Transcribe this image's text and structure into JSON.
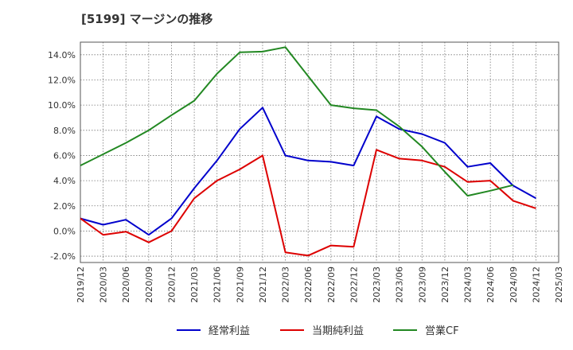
{
  "chart_data": {
    "type": "line",
    "title": "[5199]  マージンの推移",
    "xlabel": "",
    "ylabel": "",
    "ylim": [
      -2.5,
      15.0
    ],
    "y_ticks": [
      "-2.0%",
      "0.0%",
      "2.0%",
      "4.0%",
      "6.0%",
      "8.0%",
      "10.0%",
      "12.0%",
      "14.0%"
    ],
    "y_tick_values": [
      -2,
      0,
      2,
      4,
      6,
      8,
      10,
      12,
      14
    ],
    "categories": [
      "2019/12",
      "2020/03",
      "2020/06",
      "2020/09",
      "2020/12",
      "2021/03",
      "2021/06",
      "2021/09",
      "2021/12",
      "2022/03",
      "2022/06",
      "2022/09",
      "2022/12",
      "2023/03",
      "2023/06",
      "2023/09",
      "2023/12",
      "2024/03",
      "2024/06",
      "2024/09",
      "2024/12",
      "2025/03"
    ],
    "grid": true,
    "legend_position": "bottom",
    "series": [
      {
        "name": "経常利益",
        "color": "#0000cc",
        "values": [
          1.0,
          0.5,
          0.9,
          -0.3,
          1.0,
          3.4,
          5.6,
          8.1,
          9.8,
          6.0,
          5.6,
          5.5,
          5.2,
          9.1,
          8.1,
          7.7,
          7.0,
          5.1,
          5.4,
          3.6,
          2.6,
          null
        ]
      },
      {
        "name": "当期純利益",
        "color": "#dd0000",
        "values": [
          1.0,
          -0.3,
          -0.05,
          -0.9,
          0.0,
          2.6,
          4.0,
          4.9,
          6.0,
          -1.7,
          -1.95,
          -1.15,
          -1.25,
          6.45,
          5.75,
          5.6,
          5.1,
          3.9,
          4.0,
          2.4,
          1.8,
          null
        ]
      },
      {
        "name": "営業CF",
        "color": "#228822",
        "values": [
          5.2,
          6.1,
          7.0,
          8.0,
          9.2,
          10.35,
          12.5,
          14.2,
          14.25,
          14.6,
          12.3,
          10.0,
          9.75,
          9.6,
          8.3,
          6.7,
          4.7,
          2.8,
          3.2,
          3.65,
          null,
          null
        ]
      }
    ]
  }
}
